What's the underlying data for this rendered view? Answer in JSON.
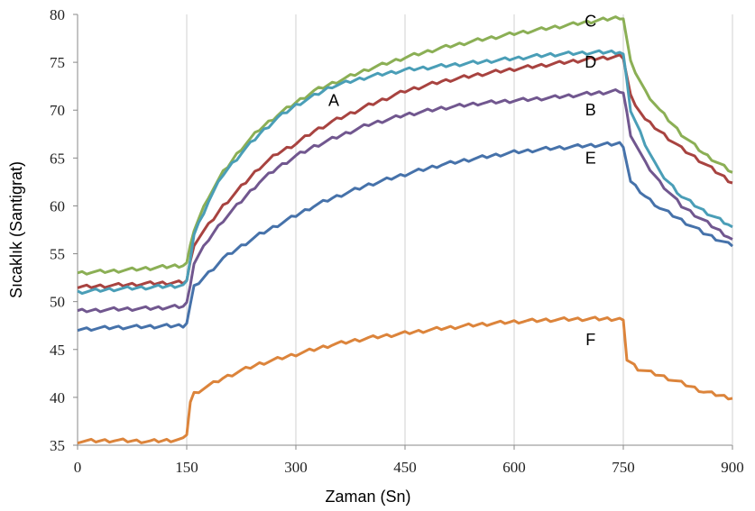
{
  "chart_data": {
    "type": "line",
    "title": "",
    "xlabel": "Zaman (Sn)",
    "ylabel": "Sıcaklık (Santigrat)",
    "xlim": [
      0,
      900
    ],
    "ylim": [
      35,
      80
    ],
    "xticks": [
      0,
      150,
      300,
      450,
      600,
      750,
      900
    ],
    "yticks": [
      35,
      40,
      45,
      50,
      55,
      60,
      65,
      70,
      75,
      80
    ],
    "grid": "vertical",
    "legend": "inline labels",
    "series": [
      {
        "name": "C",
        "color": "#8BAF55",
        "x": [
          0,
          50,
          100,
          145,
          150,
          160,
          180,
          200,
          225,
          250,
          275,
          300,
          325,
          350,
          400,
          450,
          500,
          550,
          600,
          650,
          700,
          745,
          750,
          760,
          780,
          800,
          830,
          860,
          900
        ],
        "y": [
          53.0,
          53.2,
          53.5,
          53.8,
          54.0,
          57.5,
          61.0,
          63.5,
          66.0,
          68.0,
          69.5,
          70.8,
          72.0,
          72.8,
          74.3,
          75.5,
          76.5,
          77.3,
          78.0,
          78.6,
          79.2,
          79.7,
          79.6,
          75.0,
          72.0,
          70.0,
          67.5,
          65.5,
          63.5
        ]
      },
      {
        "name": "D",
        "color": "#A84340",
        "x": [
          0,
          50,
          100,
          145,
          150,
          160,
          180,
          200,
          225,
          250,
          275,
          300,
          325,
          350,
          400,
          450,
          500,
          550,
          600,
          650,
          700,
          745,
          750,
          760,
          780,
          800,
          830,
          860,
          900
        ],
        "y": [
          51.5,
          51.7,
          51.9,
          52.0,
          52.2,
          56.0,
          58.0,
          60.0,
          62.0,
          64.0,
          65.5,
          66.5,
          67.8,
          68.8,
          70.5,
          72.0,
          73.0,
          73.7,
          74.3,
          74.8,
          75.3,
          75.6,
          75.5,
          71.5,
          69.0,
          67.8,
          66.0,
          64.5,
          62.4
        ]
      },
      {
        "name": "A",
        "color": "#4A9EB7",
        "x": [
          0,
          50,
          100,
          145,
          150,
          160,
          180,
          200,
          225,
          250,
          275,
          300,
          325,
          350,
          400,
          450,
          500,
          550,
          600,
          650,
          700,
          745,
          750,
          760,
          780,
          800,
          830,
          860,
          900
        ],
        "y": [
          51.0,
          51.3,
          51.5,
          51.7,
          52.0,
          57.0,
          60.5,
          63.3,
          65.5,
          67.5,
          69.2,
          70.5,
          71.5,
          72.5,
          73.5,
          74.2,
          74.6,
          75.0,
          75.4,
          75.8,
          76.0,
          76.1,
          75.8,
          70.0,
          66.5,
          63.5,
          61.0,
          59.5,
          57.8
        ]
      },
      {
        "name": "B",
        "color": "#71578F",
        "x": [
          0,
          50,
          100,
          145,
          150,
          160,
          180,
          200,
          225,
          250,
          275,
          300,
          325,
          350,
          400,
          450,
          500,
          550,
          600,
          650,
          700,
          745,
          750,
          760,
          780,
          800,
          830,
          860,
          900
        ],
        "y": [
          49.0,
          49.2,
          49.3,
          49.5,
          49.8,
          54.0,
          56.5,
          58.5,
          60.5,
          62.5,
          64.0,
          65.2,
          66.2,
          67.0,
          68.5,
          69.5,
          70.2,
          70.7,
          71.0,
          71.3,
          71.7,
          72.0,
          71.8,
          67.5,
          64.5,
          62.5,
          60.0,
          58.5,
          56.5
        ]
      },
      {
        "name": "E",
        "color": "#4672AA",
        "x": [
          0,
          50,
          100,
          145,
          150,
          160,
          180,
          200,
          225,
          250,
          275,
          300,
          325,
          350,
          400,
          450,
          500,
          550,
          600,
          650,
          700,
          745,
          750,
          760,
          780,
          800,
          830,
          860,
          900
        ],
        "y": [
          47.1,
          47.3,
          47.4,
          47.5,
          47.8,
          51.5,
          53.0,
          54.5,
          55.8,
          57.0,
          58.0,
          59.0,
          60.0,
          60.8,
          62.2,
          63.3,
          64.3,
          65.0,
          65.6,
          66.0,
          66.3,
          66.5,
          66.3,
          62.5,
          61.0,
          59.8,
          58.5,
          57.2,
          55.8
        ]
      },
      {
        "name": "F",
        "color": "#DC843B",
        "x": [
          0,
          50,
          100,
          145,
          150,
          155,
          160,
          180,
          200,
          225,
          250,
          275,
          300,
          325,
          350,
          400,
          450,
          500,
          550,
          600,
          650,
          700,
          745,
          750,
          755,
          770,
          800,
          830,
          860,
          900
        ],
        "y": [
          35.4,
          35.5,
          35.4,
          35.6,
          36.2,
          39.5,
          40.4,
          41.2,
          42.0,
          42.8,
          43.5,
          44.0,
          44.5,
          45.0,
          45.5,
          46.2,
          46.7,
          47.2,
          47.6,
          47.9,
          48.1,
          48.2,
          48.2,
          47.9,
          44.0,
          43.0,
          42.3,
          41.5,
          40.6,
          39.9
        ]
      }
    ],
    "annotations": [
      "C",
      "D",
      "A",
      "B",
      "E",
      "F"
    ]
  }
}
